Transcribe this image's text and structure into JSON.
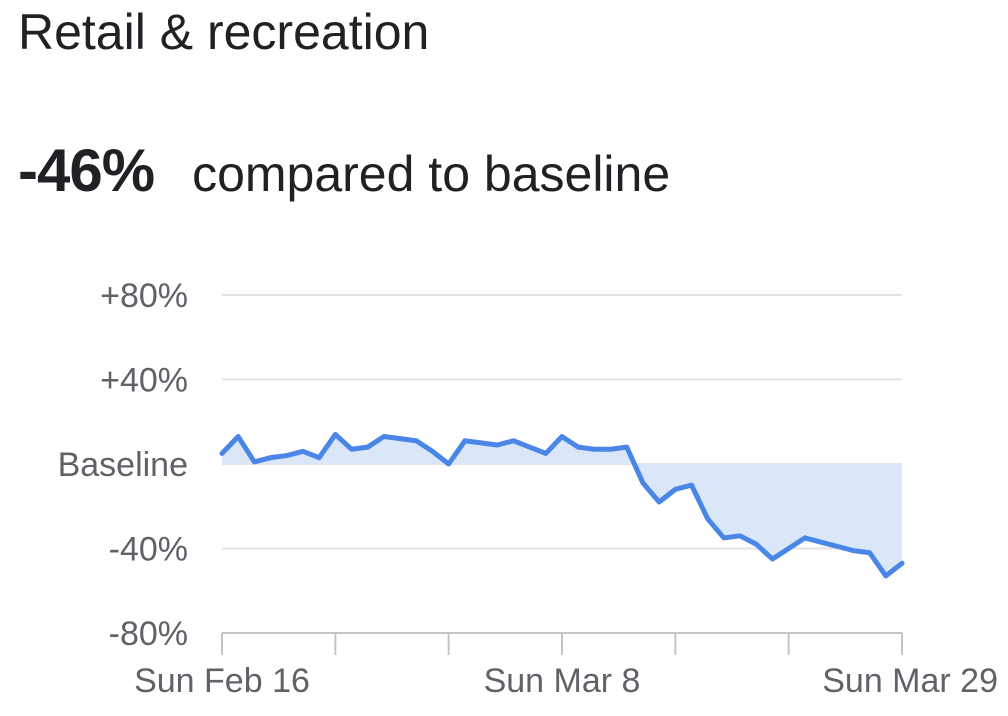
{
  "title": "Retail & recreation",
  "summary": {
    "value": "-46%",
    "label": "compared to baseline"
  },
  "chart_data": {
    "type": "area",
    "title": "Retail & recreation",
    "xlabel": "",
    "ylabel": "",
    "ylim": [
      -80,
      80
    ],
    "y_ticks": [
      {
        "value": 80,
        "label": "+80%"
      },
      {
        "value": 40,
        "label": "+40%"
      },
      {
        "value": 0,
        "label": "Baseline"
      },
      {
        "value": -40,
        "label": "-40%"
      },
      {
        "value": -80,
        "label": "-80%"
      }
    ],
    "x_range": [
      "2020-02-16",
      "2020-03-29"
    ],
    "x_ticks_major": [
      {
        "date": "2020-02-16",
        "label": "Sun Feb 16"
      },
      {
        "date": "2020-03-08",
        "label": "Sun Mar 8"
      },
      {
        "date": "2020-03-29",
        "label": "Sun Mar 29"
      }
    ],
    "x_ticks_minor": [
      "2020-02-23",
      "2020-03-01",
      "2020-03-15",
      "2020-03-22"
    ],
    "grid": true,
    "series": [
      {
        "x": [
          "2020-02-16",
          "2020-02-17",
          "2020-02-18",
          "2020-02-19",
          "2020-02-20",
          "2020-02-21",
          "2020-02-22",
          "2020-02-23",
          "2020-02-24",
          "2020-02-25",
          "2020-02-26",
          "2020-02-27",
          "2020-02-28",
          "2020-02-29",
          "2020-03-01",
          "2020-03-02",
          "2020-03-03",
          "2020-03-04",
          "2020-03-05",
          "2020-03-06",
          "2020-03-07",
          "2020-03-08",
          "2020-03-09",
          "2020-03-10",
          "2020-03-11",
          "2020-03-12",
          "2020-03-13",
          "2020-03-14",
          "2020-03-15",
          "2020-03-16",
          "2020-03-17",
          "2020-03-18",
          "2020-03-19",
          "2020-03-20",
          "2020-03-21",
          "2020-03-22",
          "2020-03-23",
          "2020-03-24",
          "2020-03-25",
          "2020-03-26",
          "2020-03-27",
          "2020-03-28",
          "2020-03-29"
        ],
        "values": [
          5,
          13,
          1,
          3,
          4,
          6,
          3,
          14,
          7,
          8,
          13,
          12,
          11,
          6,
          0,
          11,
          10,
          9,
          11,
          8,
          5,
          13,
          8,
          7,
          7,
          8,
          -9,
          -18,
          -12,
          -10,
          -26,
          -35,
          -34,
          -38,
          -45,
          -40,
          -35,
          -37,
          -39,
          -41,
          -42,
          -53,
          -47
        ]
      }
    ],
    "colors": {
      "line": "#4a86e8",
      "fill": "#dbe6f9",
      "grid": "#e3e3e3",
      "axis": "#c4c4c4",
      "tick_text": "#5f6368"
    }
  }
}
